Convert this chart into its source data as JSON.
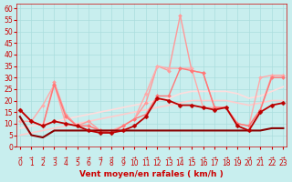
{
  "bg_color": "#c8eeee",
  "grid_color": "#aadddd",
  "xlabel": "Vent moyen/en rafales ( km/h )",
  "xlim": [
    -0.3,
    23.3
  ],
  "ylim": [
    0,
    62
  ],
  "yticks": [
    0,
    5,
    10,
    15,
    20,
    25,
    30,
    35,
    40,
    45,
    50,
    55,
    60
  ],
  "xticks": [
    0,
    1,
    2,
    3,
    4,
    5,
    6,
    7,
    8,
    9,
    10,
    11,
    12,
    13,
    14,
    15,
    16,
    17,
    18,
    19,
    20,
    21,
    22,
    23
  ],
  "lines": [
    {
      "y": [
        16,
        11,
        9,
        11,
        10,
        9,
        7,
        6,
        6,
        7,
        9,
        13,
        21,
        20,
        18,
        18,
        17,
        16,
        17,
        9,
        7,
        15,
        18,
        19
      ],
      "color": "#bb0000",
      "lw": 1.3,
      "marker": "D",
      "ms": 2.5,
      "zorder": 5
    },
    {
      "y": [
        13,
        5,
        4,
        7,
        7,
        7,
        7,
        7,
        7,
        7,
        7,
        7,
        7,
        7,
        7,
        7,
        7,
        7,
        7,
        7,
        7,
        7,
        8,
        8
      ],
      "color": "#880000",
      "lw": 1.5,
      "marker": null,
      "ms": 0,
      "zorder": 4
    },
    {
      "y": [
        16,
        11,
        9,
        28,
        14,
        9,
        11,
        7,
        6,
        9,
        12,
        19,
        35,
        33,
        57,
        33,
        32,
        17,
        17,
        10,
        9,
        16,
        31,
        31
      ],
      "color": "#ff9999",
      "lw": 1.0,
      "marker": "D",
      "ms": 2.0,
      "zorder": 3
    },
    {
      "y": [
        11,
        11,
        18,
        27,
        10,
        9,
        9,
        7,
        7,
        9,
        12,
        23,
        35,
        34,
        34,
        34,
        17,
        17,
        17,
        10,
        9,
        30,
        31,
        31
      ],
      "color": "#ffaaaa",
      "lw": 1.0,
      "marker": "D",
      "ms": 2.0,
      "zorder": 3
    },
    {
      "y": [
        16,
        11,
        9,
        27,
        13,
        9,
        9,
        7,
        6,
        9,
        12,
        14,
        22,
        22,
        34,
        33,
        32,
        17,
        17,
        10,
        9,
        16,
        30,
        30
      ],
      "color": "#ff7777",
      "lw": 1.0,
      "marker": "D",
      "ms": 2.0,
      "zorder": 3
    },
    {
      "y": [
        5,
        6,
        7,
        8,
        9,
        10,
        11,
        12,
        13,
        14,
        15,
        16,
        17,
        18,
        19,
        20,
        20,
        20,
        20,
        19,
        18,
        19,
        20,
        20
      ],
      "color": "#ffcccc",
      "lw": 1.2,
      "marker": null,
      "ms": 0,
      "zorder": 2
    },
    {
      "y": [
        8,
        9,
        10,
        11,
        12,
        13,
        14,
        15,
        16,
        17,
        18,
        19,
        20,
        21,
        23,
        24,
        24,
        24,
        24,
        23,
        21,
        22,
        24,
        26
      ],
      "color": "#ffdddd",
      "lw": 1.2,
      "marker": null,
      "ms": 0,
      "zorder": 2
    }
  ],
  "arrow_color": "#cc0000",
  "xlabel_color": "#cc0000",
  "xlabel_fontsize": 6.5,
  "tick_color": "#cc0000",
  "tick_fontsize": 5.5
}
